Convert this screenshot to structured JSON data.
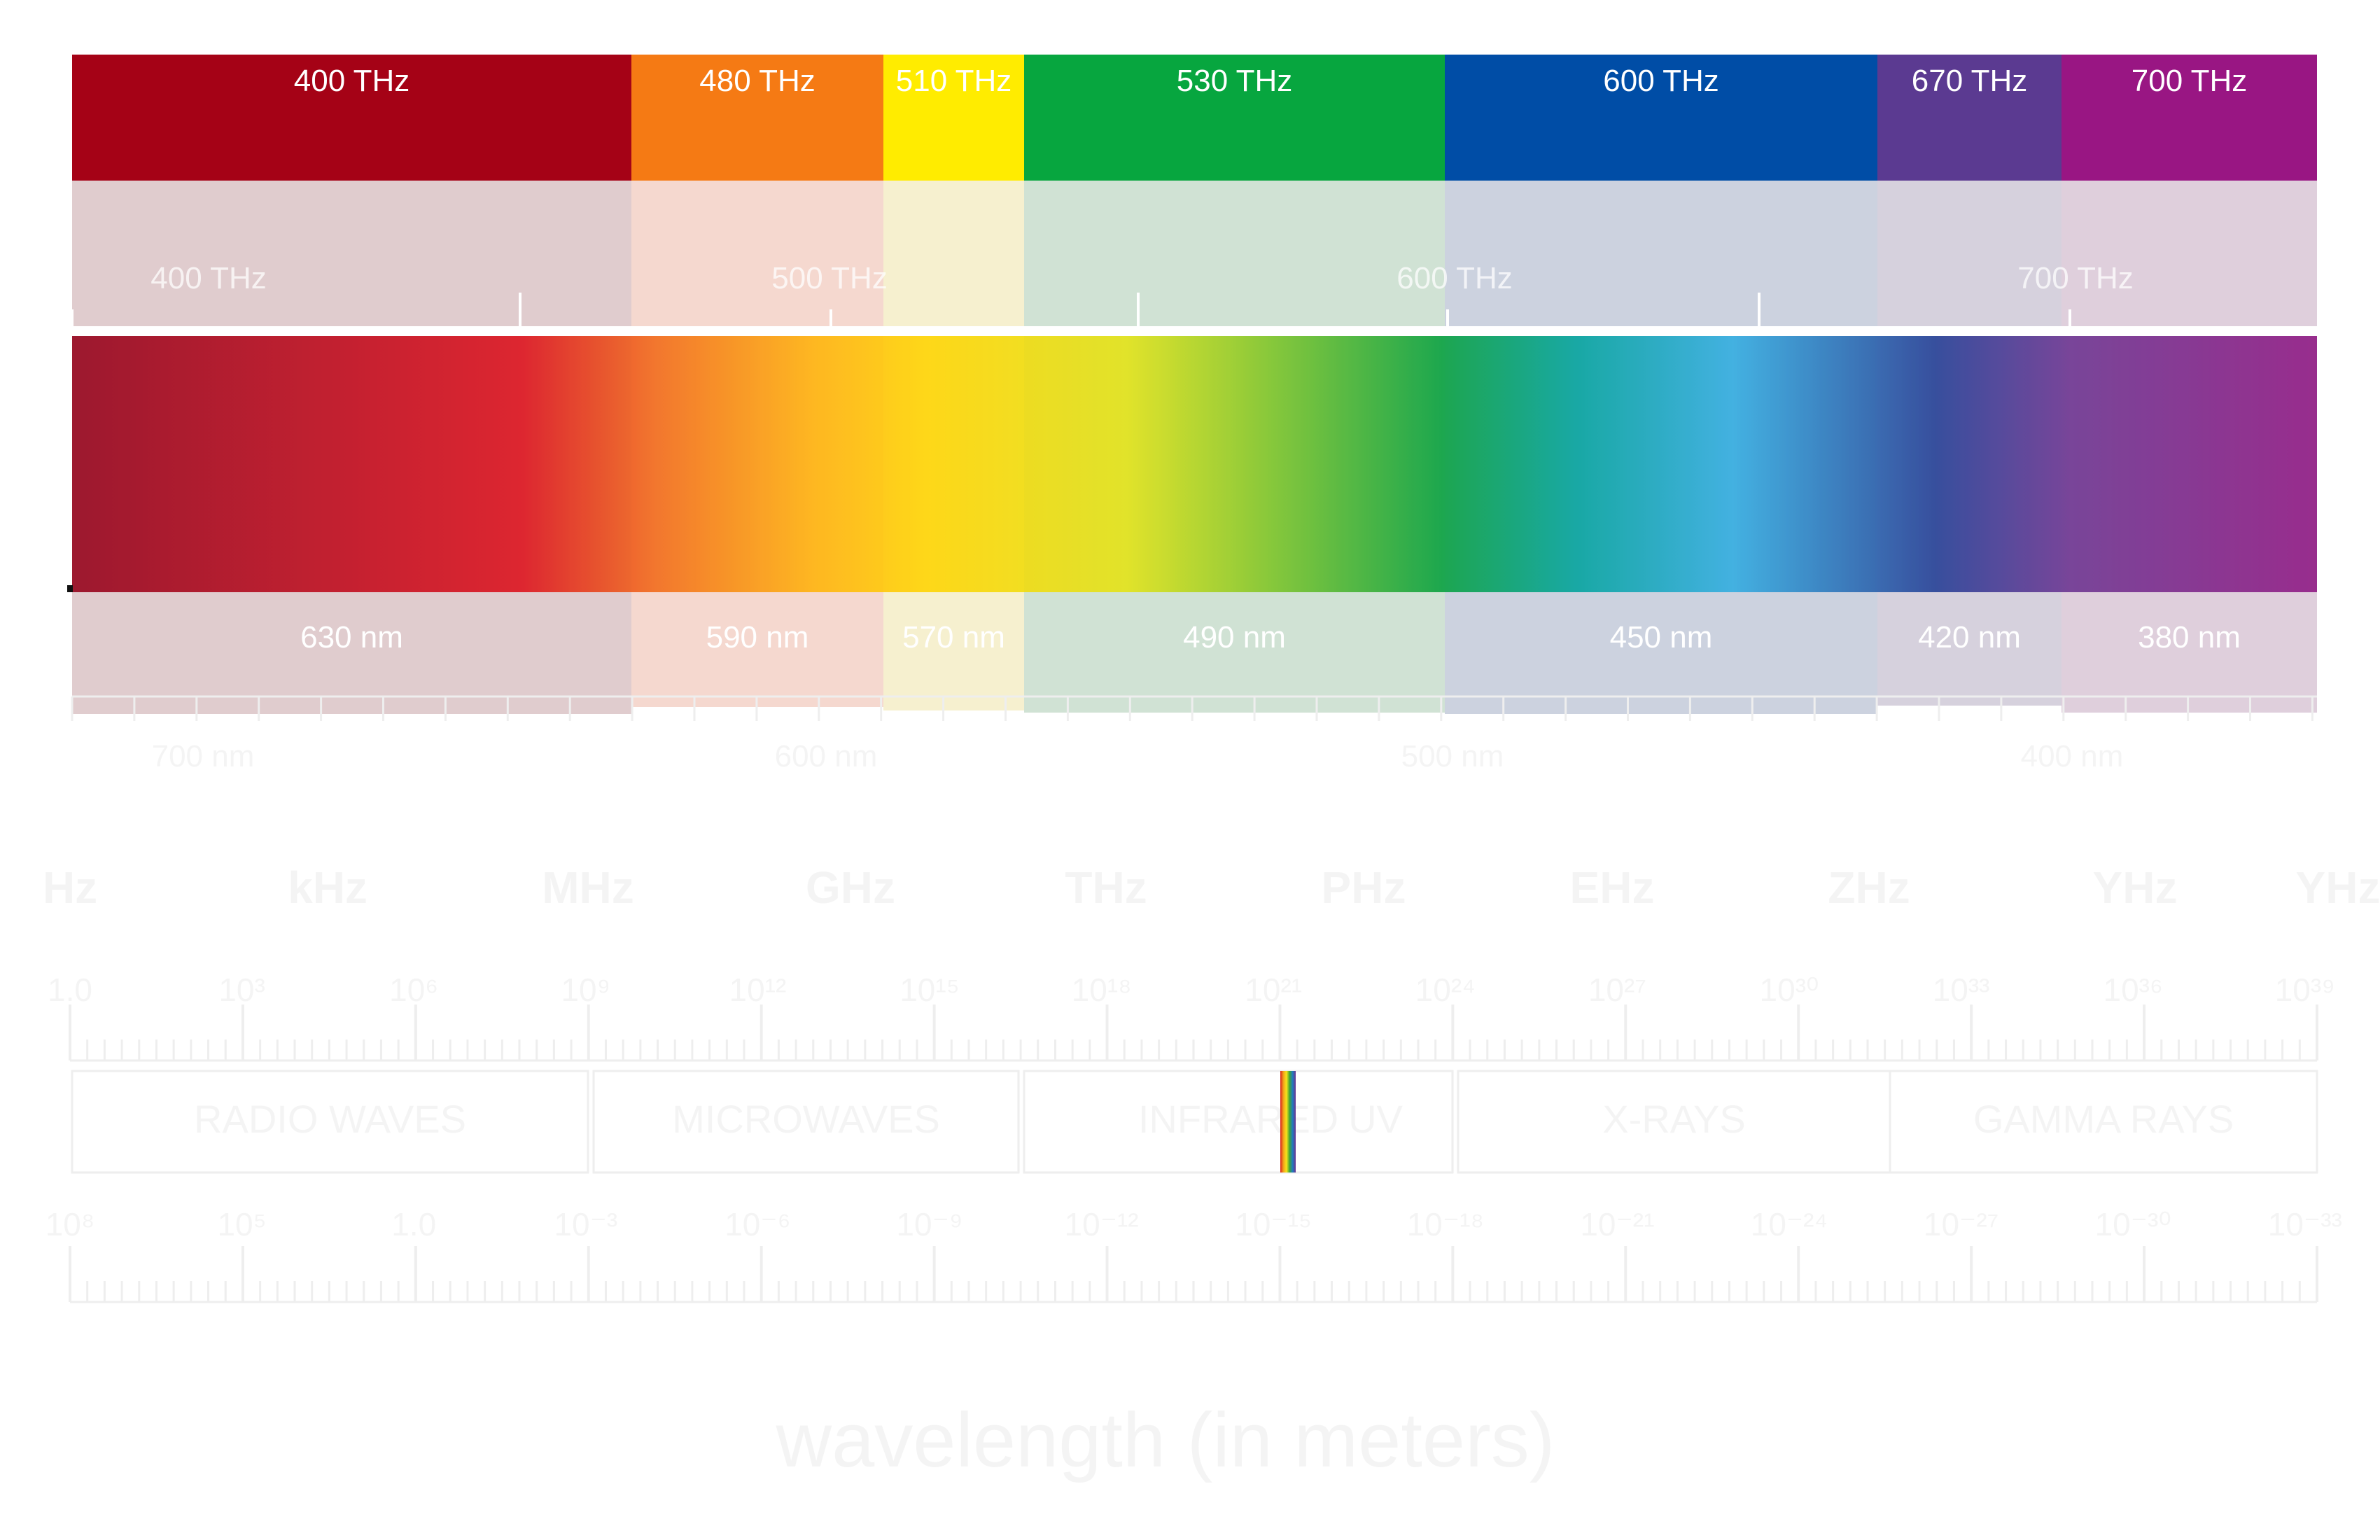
{
  "bands": [
    {
      "name": "red",
      "frequency": "400 THz",
      "wavelength": "630 nm",
      "color": "#A50216",
      "tint": "#E0CCCE"
    },
    {
      "name": "orange",
      "frequency": "480 THz",
      "wavelength": "590 nm",
      "color": "#F57A14",
      "tint": "#F5D8CF"
    },
    {
      "name": "yellow",
      "frequency": "510 THz",
      "wavelength": "570 nm",
      "color": "#FFEC00",
      "tint": "#F6F0CF"
    },
    {
      "name": "green",
      "frequency": "530 THz",
      "wavelength": "490 nm",
      "color": "#07A63F",
      "tint": "#D0E2D4"
    },
    {
      "name": "blue",
      "frequency": "600 THz",
      "wavelength": "450 nm",
      "color": "#004DA6",
      "tint": "#CCD2DF"
    },
    {
      "name": "indigo",
      "frequency": "670 THz",
      "wavelength": "420 nm",
      "color": "#5B3A91",
      "tint": "#D6D1DD"
    },
    {
      "name": "violet",
      "frequency": "700 THz",
      "wavelength": "380 nm",
      "color": "#991683",
      "tint": "#DFCFDC"
    }
  ],
  "gradient_colors": [
    "#94001A",
    "#DD0F1B",
    "#F26A18",
    "#FFB30A",
    "#FFD400",
    "#E4E413",
    "#05A03C",
    "#00A29D",
    "#30ACE2",
    "#223E95",
    "#6B3390",
    "#8F1782"
  ],
  "frequency_scale": [
    "400 THz",
    "500 THz",
    "600 THz",
    "700 THz"
  ],
  "wavelength_scale": [
    "700 nm",
    "600 nm",
    "500 nm",
    "400 nm"
  ],
  "spectrum_units": [
    "Hz",
    "kHz",
    "MHz",
    "GHz",
    "THz",
    "PHz",
    "EHz",
    "ZHz",
    "YHz",
    "YHz"
  ],
  "frequency_exponents": [
    "1.0",
    "10³",
    "10⁶",
    "10⁹",
    "10¹²",
    "10¹⁵",
    "10¹⁸",
    "10²¹",
    "10²⁴",
    "10²⁷",
    "10³⁰",
    "10³³",
    "10³⁶",
    "10³⁹"
  ],
  "regions": [
    "RADIO WAVES",
    "MICROWAVES",
    "INFRARED",
    "UV",
    "X-RAYS",
    "GAMMA RAYS"
  ],
  "wavelength_exponents": [
    "10⁸",
    "10⁵",
    "1.0",
    "10⁻³",
    "10⁻⁶",
    "10⁻⁹",
    "10⁻¹²",
    "10⁻¹⁵",
    "10⁻¹⁸",
    "10⁻²¹",
    "10⁻²⁴",
    "10⁻²⁷",
    "10⁻³⁰",
    "10⁻³³"
  ],
  "axis_title": "wavelength (in meters)",
  "colors": {
    "band_label": "#ffffff",
    "scale_overlay": "#ffffff",
    "faint_text": "#F4F4F4",
    "faint_line": "#EEEEEE",
    "axis_rule": "#111111"
  }
}
